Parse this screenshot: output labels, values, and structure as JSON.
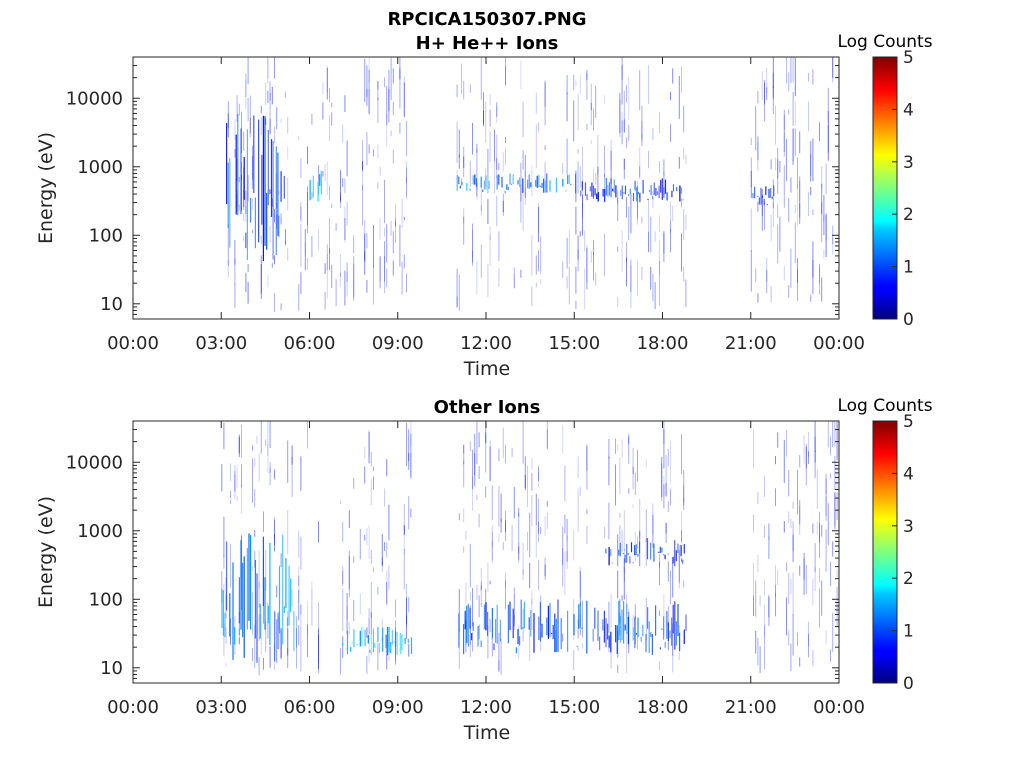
{
  "figure": {
    "title": "RPCICA150307.PNG"
  },
  "chart_data": [
    {
      "type": "heatmap",
      "title": "H+ He++ Ions",
      "xlabel": "Time",
      "ylabel": "Energy (eV)",
      "x_tick_labels": [
        "00:00",
        "03:00",
        "06:00",
        "09:00",
        "12:00",
        "15:00",
        "18:00",
        "21:00",
        "00:00"
      ],
      "x_range_hours": [
        0,
        24
      ],
      "y_scale": "log",
      "y_tick_labels": [
        "10",
        "100",
        "1000",
        "10000"
      ],
      "y_ticks": [
        10,
        100,
        1000,
        10000
      ],
      "ylim": [
        6,
        40000
      ],
      "grid": false,
      "colorbar": {
        "label": "Log Counts",
        "range": [
          0,
          5
        ],
        "tick_labels": [
          "0",
          "1",
          "2",
          "3",
          "4",
          "5"
        ],
        "colormap": "jet"
      },
      "data_intervals_hours": [
        [
          3.0,
          9.5
        ],
        [
          11.0,
          18.8
        ],
        [
          21.0,
          24.0
        ]
      ],
      "features": [
        {
          "t_start": 3.0,
          "t_end": 5.2,
          "e_min": 40,
          "e_max": 6000,
          "log_counts": 1.0,
          "description_class": "vertical streaks"
        },
        {
          "t_start": 6.0,
          "t_end": 6.4,
          "e_min": 300,
          "e_max": 1000,
          "log_counts": 1.5
        },
        {
          "t_start": 11.0,
          "t_end": 15.2,
          "e_min": 400,
          "e_max": 800,
          "log_counts": 1.2
        },
        {
          "t_start": 15.2,
          "t_end": 18.8,
          "e_min": 300,
          "e_max": 700,
          "log_counts": 0.8
        },
        {
          "t_start": 21.0,
          "t_end": 22.0,
          "e_min": 250,
          "e_max": 600,
          "log_counts": 0.7
        }
      ]
    },
    {
      "type": "heatmap",
      "title": "Other Ions",
      "xlabel": "Time",
      "ylabel": "Energy (eV)",
      "x_tick_labels": [
        "00:00",
        "03:00",
        "06:00",
        "09:00",
        "12:00",
        "15:00",
        "18:00",
        "21:00",
        "00:00"
      ],
      "x_range_hours": [
        0,
        24
      ],
      "y_scale": "log",
      "y_tick_labels": [
        "10",
        "100",
        "1000",
        "10000"
      ],
      "y_ticks": [
        10,
        100,
        1000,
        10000
      ],
      "ylim": [
        6,
        40000
      ],
      "grid": false,
      "colorbar": {
        "label": "Log Counts",
        "range": [
          0,
          5
        ],
        "tick_labels": [
          "0",
          "1",
          "2",
          "3",
          "4",
          "5"
        ],
        "colormap": "jet"
      },
      "data_intervals_hours": [
        [
          3.0,
          9.5
        ],
        [
          11.0,
          18.8
        ],
        [
          21.0,
          24.0
        ]
      ],
      "features": [
        {
          "t_start": 3.0,
          "t_end": 5.5,
          "e_min": 10,
          "e_max": 1000,
          "log_counts": 1.2
        },
        {
          "t_start": 7.0,
          "t_end": 9.5,
          "e_min": 15,
          "e_max": 40,
          "log_counts": 1.6
        },
        {
          "t_start": 11.0,
          "t_end": 18.8,
          "e_min": 15,
          "e_max": 100,
          "log_counts": 1.0
        },
        {
          "t_start": 16.0,
          "t_end": 18.8,
          "e_min": 300,
          "e_max": 800,
          "log_counts": 0.8
        }
      ]
    }
  ]
}
